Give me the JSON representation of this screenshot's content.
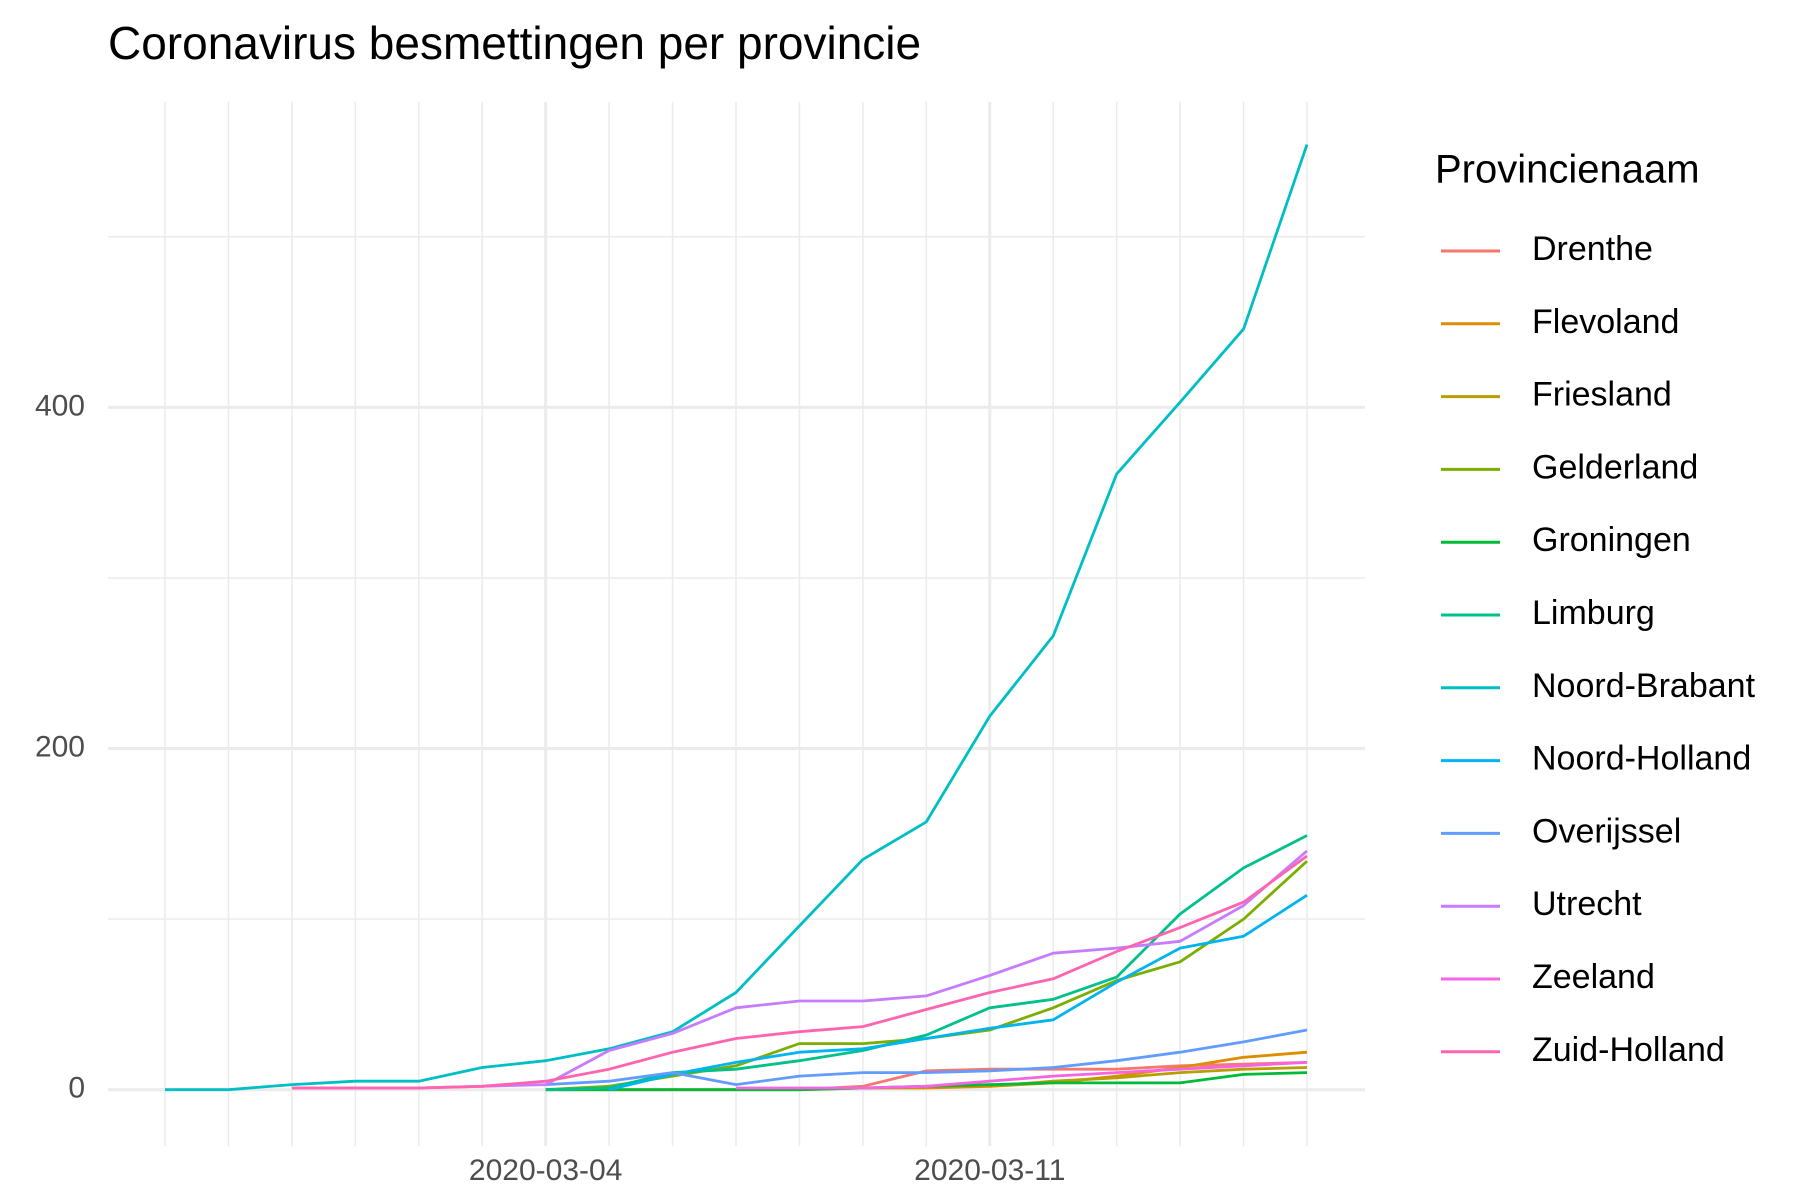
{
  "chart_data": {
    "type": "line",
    "title": "Coronavirus besmettingen per provincie",
    "legend_title": "Provincienaam",
    "legend": "right",
    "grid": true,
    "x": [
      "2020-02-27",
      "2020-02-28",
      "2020-02-29",
      "2020-03-01",
      "2020-03-02",
      "2020-03-03",
      "2020-03-04",
      "2020-03-05",
      "2020-03-06",
      "2020-03-07",
      "2020-03-08",
      "2020-03-09",
      "2020-03-10",
      "2020-03-11",
      "2020-03-12",
      "2020-03-13",
      "2020-03-14",
      "2020-03-15",
      "2020-03-16"
    ],
    "xticks": [
      "2020-03-04",
      "2020-03-11"
    ],
    "ylim": [
      -33,
      579
    ],
    "yticks": [
      0,
      200,
      400
    ],
    "series": [
      {
        "name": "Drenthe",
        "color": "#F8766D",
        "values": [
          null,
          null,
          null,
          null,
          null,
          null,
          null,
          null,
          null,
          null,
          0,
          2,
          11,
          12,
          12,
          12,
          14,
          15,
          16
        ]
      },
      {
        "name": "Flevoland",
        "color": "#DE8C00",
        "values": [
          null,
          null,
          null,
          null,
          null,
          null,
          0,
          0,
          0,
          0,
          0,
          1,
          1,
          2,
          4,
          8,
          13,
          19,
          22
        ]
      },
      {
        "name": "Friesland",
        "color": "#B79F00",
        "values": [
          null,
          null,
          null,
          null,
          null,
          null,
          null,
          null,
          null,
          null,
          null,
          null,
          null,
          2,
          5,
          7,
          10,
          12,
          13
        ]
      },
      {
        "name": "Gelderland",
        "color": "#7CAE00",
        "values": [
          null,
          null,
          null,
          null,
          null,
          null,
          0,
          2,
          8,
          14,
          27,
          27,
          30,
          35,
          48,
          64,
          75,
          100,
          134
        ]
      },
      {
        "name": "Groningen",
        "color": "#00BA38",
        "values": [
          null,
          null,
          null,
          null,
          null,
          null,
          0,
          0,
          0,
          0,
          0,
          1,
          2,
          3,
          4,
          4,
          4,
          9,
          10
        ]
      },
      {
        "name": "Limburg",
        "color": "#00C08B",
        "values": [
          null,
          null,
          null,
          null,
          null,
          null,
          0,
          1,
          10,
          12,
          17,
          23,
          32,
          48,
          53,
          66,
          103,
          130,
          149
        ]
      },
      {
        "name": "Noord-Brabant",
        "color": "#00BFC4",
        "values": [
          0,
          0,
          3,
          5,
          5,
          13,
          17,
          24,
          34,
          57,
          96,
          135,
          157,
          219,
          266,
          361,
          403,
          446,
          554
        ]
      },
      {
        "name": "Noord-Holland",
        "color": "#00B4F0",
        "values": [
          null,
          null,
          null,
          null,
          null,
          null,
          null,
          0,
          9,
          16,
          22,
          24,
          30,
          36,
          41,
          63,
          83,
          90,
          114
        ]
      },
      {
        "name": "Overijssel",
        "color": "#619CFF",
        "values": [
          null,
          null,
          null,
          null,
          null,
          null,
          3,
          5,
          10,
          3,
          8,
          10,
          10,
          11,
          13,
          17,
          22,
          28,
          35
        ]
      },
      {
        "name": "Utrecht",
        "color": "#C77CFF",
        "values": [
          null,
          null,
          1,
          1,
          1,
          2,
          3,
          23,
          33,
          48,
          52,
          52,
          55,
          67,
          80,
          83,
          87,
          108,
          140
        ]
      },
      {
        "name": "Zeeland",
        "color": "#F564E3",
        "values": [
          null,
          null,
          null,
          null,
          null,
          null,
          null,
          null,
          null,
          1,
          1,
          1,
          2,
          5,
          8,
          10,
          12,
          14,
          16
        ]
      },
      {
        "name": "Zuid-Holland",
        "color": "#FF64B0",
        "values": [
          null,
          null,
          1,
          1,
          1,
          2,
          5,
          12,
          22,
          30,
          34,
          37,
          47,
          57,
          65,
          81,
          95,
          110,
          137
        ]
      }
    ]
  }
}
